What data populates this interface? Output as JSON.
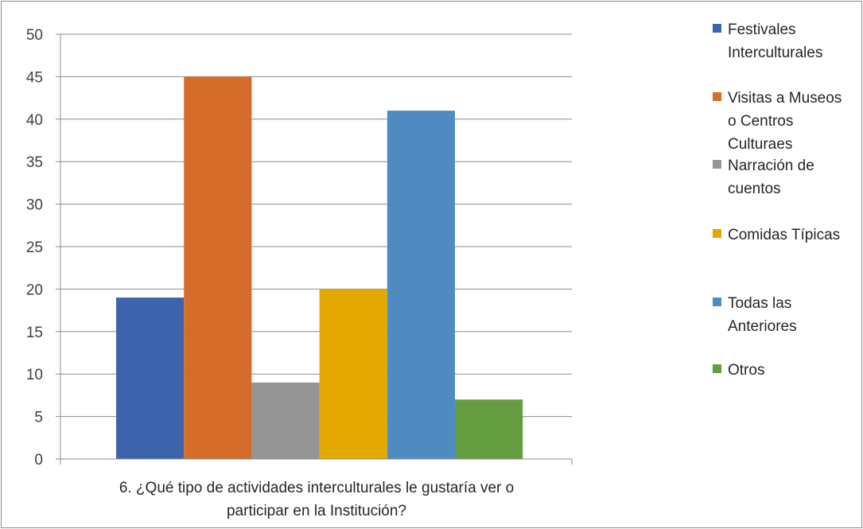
{
  "chart_data": {
    "type": "bar",
    "categories": [
      "6. ¿Qué tipo de actividades interculturales le gustaría ver o participar en la Institución?"
    ],
    "category_lines": [
      "6. ¿Qué tipo de actividades interculturales le gustaría ver o",
      "participar en la Institución?"
    ],
    "series": [
      {
        "name": "Festivales Interculturales",
        "legend_lines": [
          "Festivales",
          "Interculturales"
        ],
        "values": [
          19
        ],
        "color": "#3e64ad"
      },
      {
        "name": "Visitas a Museos o Centros Culturaes",
        "legend_lines": [
          "Visitas a Museos",
          "o Centros",
          "Culturaes"
        ],
        "values": [
          45
        ],
        "color": "#d46d2a"
      },
      {
        "name": "Narración de cuentos",
        "legend_lines": [
          "Narración de",
          "cuentos"
        ],
        "values": [
          9
        ],
        "color": "#959595"
      },
      {
        "name": "Comidas Típicas",
        "legend_lines": [
          "Comidas Típicas"
        ],
        "values": [
          20
        ],
        "color": "#e3a900"
      },
      {
        "name": "Todas las Anteriores",
        "legend_lines": [
          "Todas las",
          "Anteriores"
        ],
        "values": [
          41
        ],
        "color": "#4f8bc0"
      },
      {
        "name": "Otros",
        "legend_lines": [
          "Otros"
        ],
        "values": [
          7
        ],
        "color": "#659e41"
      }
    ],
    "ylim": [
      0,
      50
    ],
    "yticks": [
      0,
      5,
      10,
      15,
      20,
      25,
      30,
      35,
      40,
      45,
      50
    ],
    "grid": true,
    "legend_position": "right"
  }
}
